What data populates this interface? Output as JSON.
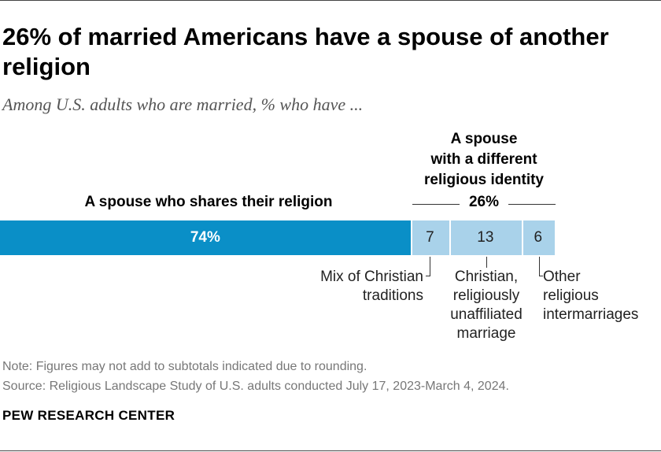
{
  "title": "26% of married Americans have a spouse of another religion",
  "subtitle": "Among U.S. adults who are married, % who have ...",
  "chart_data": {
    "type": "bar",
    "orientation": "horizontal-stacked",
    "xlim": [
      0,
      100
    ],
    "segments": [
      {
        "name": "A spouse who shares their religion",
        "value": 74,
        "value_label": "74%",
        "color": "#0a8fc7"
      },
      {
        "name": "Mix of Christian traditions",
        "value": 7,
        "value_label": "7",
        "color": "#a9d2ea"
      },
      {
        "name": "Christian, religiously unaffiliated marriage",
        "value": 13,
        "value_label": "13",
        "color": "#a9d2ea"
      },
      {
        "name": "Other religious intermarriages",
        "value": 6,
        "value_label": "6",
        "color": "#a9d2ea"
      }
    ],
    "group": {
      "label_lines": [
        "A spouse",
        "with a different",
        "religious identity"
      ],
      "subtotal_label": "26%"
    },
    "category_labels": [
      {
        "lines": [
          "Mix of Christian",
          "traditions"
        ]
      },
      {
        "lines": [
          "Christian,",
          "religiously",
          "unaffiliated",
          "marriage"
        ]
      },
      {
        "lines": [
          "Other",
          "religious",
          "intermarriages"
        ]
      }
    ],
    "share_label": "A spouse who shares their religion"
  },
  "note": "Note: Figures may not add to subtotals indicated due to rounding.",
  "source": "Source: Religious Landscape Study of U.S. adults conducted July 17, 2023-March 4, 2024.",
  "brand": "PEW RESEARCH CENTER"
}
